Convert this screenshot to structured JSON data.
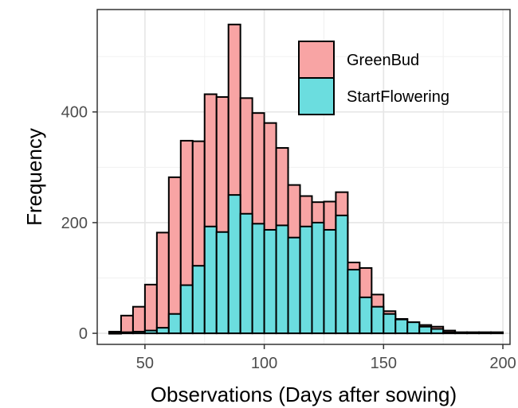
{
  "chart_data": {
    "type": "bar",
    "subtype": "overlapping-histogram",
    "title": "",
    "xlabel": "Observations (Days after sowing)",
    "ylabel": "Frequency",
    "xlim": [
      30,
      203
    ],
    "ylim": [
      -20,
      585
    ],
    "x_ticks": [
      50,
      100,
      150,
      200
    ],
    "y_ticks": [
      0,
      200,
      400
    ],
    "grid": true,
    "legend_position": "top-right (inside)",
    "bin_width": 5,
    "bin_centers": [
      37.5,
      42.5,
      47.5,
      52.5,
      57.5,
      62.5,
      67.5,
      72.5,
      77.5,
      82.5,
      87.5,
      92.5,
      97.5,
      102.5,
      107.5,
      112.5,
      117.5,
      122.5,
      127.5,
      132.5,
      137.5,
      142.5,
      147.5,
      152.5,
      157.5,
      162.5,
      167.5,
      172.5,
      177.5,
      182.5,
      187.5,
      192.5,
      197.5
    ],
    "series": [
      {
        "name": "GreenBud",
        "color": "#F8A4A4",
        "values": [
          3,
          32,
          48,
          88,
          182,
          282,
          348,
          347,
          432,
          427,
          558,
          425,
          398,
          380,
          335,
          268,
          248,
          237,
          238,
          255,
          128,
          118,
          70,
          40,
          26,
          20,
          15,
          12,
          5,
          2,
          2,
          2,
          2
        ]
      },
      {
        "name": "StartFlowering",
        "color": "#6BDDDF",
        "values": [
          0,
          2,
          3,
          5,
          10,
          35,
          87,
          122,
          193,
          183,
          250,
          216,
          198,
          187,
          195,
          173,
          193,
          200,
          187,
          213,
          115,
          65,
          48,
          35,
          25,
          20,
          12,
          8,
          2,
          1,
          1,
          1,
          1
        ]
      }
    ]
  }
}
